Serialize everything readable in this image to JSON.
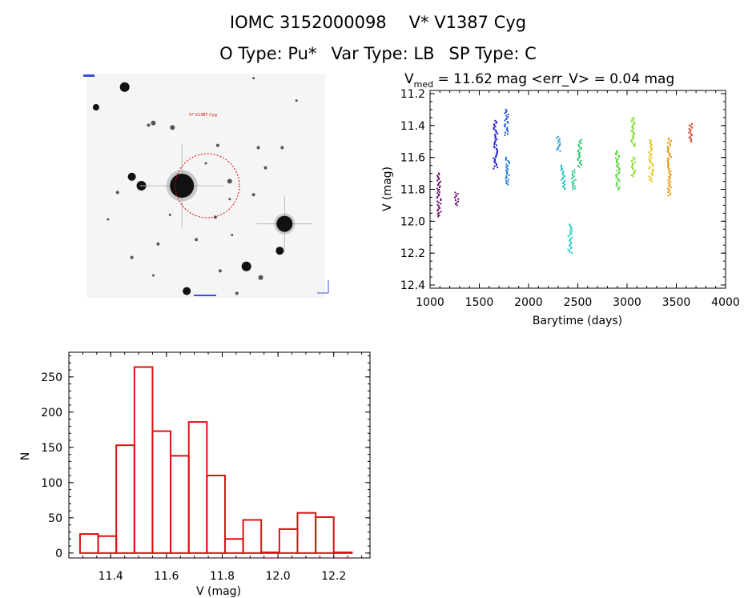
{
  "header": {
    "id": "IOMC 3152000098",
    "star_name": "V* V1387 Cyg",
    "o_type": "O Type: Pu*",
    "var_type": "Var Type: LB",
    "sp_type": "SP Type: C"
  },
  "image_panel": {
    "labels": [
      "V* V1387 Cyg"
    ],
    "stars": [
      [
        0.16,
        0.06,
        6
      ],
      [
        0.04,
        0.15,
        4
      ],
      [
        0.36,
        0.24,
        3
      ],
      [
        0.26,
        0.23,
        2
      ],
      [
        0.28,
        0.22,
        3
      ],
      [
        0.19,
        0.46,
        5
      ],
      [
        0.23,
        0.5,
        6
      ],
      [
        0.13,
        0.53,
        2
      ],
      [
        0.4,
        0.5,
        15
      ],
      [
        0.75,
        0.42,
        2
      ],
      [
        0.55,
        0.32,
        2
      ],
      [
        0.72,
        0.33,
        2
      ],
      [
        0.82,
        0.33,
        2
      ],
      [
        0.6,
        0.48,
        3
      ],
      [
        0.7,
        0.54,
        2
      ],
      [
        0.83,
        0.67,
        10
      ],
      [
        0.81,
        0.79,
        5
      ],
      [
        0.67,
        0.86,
        6
      ],
      [
        0.3,
        0.76,
        2
      ],
      [
        0.46,
        0.74,
        2
      ],
      [
        0.19,
        0.82,
        2
      ],
      [
        0.73,
        0.91,
        3
      ],
      [
        0.42,
        0.97,
        5
      ],
      [
        0.56,
        0.88,
        2
      ],
      [
        0.54,
        0.64,
        2
      ],
      [
        0.35,
        0.63,
        1.5
      ],
      [
        0.61,
        0.72,
        1.5
      ],
      [
        0.09,
        0.65,
        1.5
      ],
      [
        0.63,
        0.98,
        2
      ],
      [
        0.88,
        0.12,
        1.5
      ],
      [
        0.7,
        0.02,
        1.5
      ],
      [
        0.6,
        0.56,
        1.5
      ],
      [
        0.28,
        0.9,
        1.5
      ],
      [
        0.5,
        0.4,
        1.5
      ]
    ]
  },
  "chart_data": [
    {
      "type": "scatter",
      "title": "V_med = 11.62 mag <err_V> = 0.04 mag",
      "title_parts": {
        "v": "V",
        "sub": "med",
        "rest": " = 11.62 mag <err_V> = 0.04 mag"
      },
      "xlabel": "Barytime (days)",
      "ylabel": "V (mag)",
      "xlim": [
        1000,
        4000
      ],
      "ylim": [
        12.42,
        11.18
      ],
      "xticks": [
        1000,
        1500,
        2000,
        2500,
        3000,
        3500,
        4000
      ],
      "yticks": [
        11.2,
        11.4,
        11.6,
        11.8,
        12.0,
        12.2,
        12.4
      ],
      "clusters": [
        {
          "x": 1090,
          "ymin": 11.7,
          "ymax": 11.97,
          "color": "#6a0f6a"
        },
        {
          "x": 1270,
          "ymin": 11.82,
          "ymax": 11.9,
          "color": "#6a0f6a"
        },
        {
          "x": 1665,
          "ymin": 11.37,
          "ymax": 11.67,
          "color": "#1f1fe0"
        },
        {
          "x": 1775,
          "ymin": 11.3,
          "ymax": 11.46,
          "color": "#1f55d8"
        },
        {
          "x": 1790,
          "ymin": 11.6,
          "ymax": 11.77,
          "color": "#1f7bd8"
        },
        {
          "x": 2305,
          "ymin": 11.47,
          "ymax": 11.56,
          "color": "#2a9ed6"
        },
        {
          "x": 2350,
          "ymin": 11.65,
          "ymax": 11.8,
          "color": "#21c4c4"
        },
        {
          "x": 2420,
          "ymin": 12.02,
          "ymax": 12.2,
          "color": "#21d1c1"
        },
        {
          "x": 2460,
          "ymin": 11.68,
          "ymax": 11.8,
          "color": "#22c998"
        },
        {
          "x": 2520,
          "ymin": 11.49,
          "ymax": 11.66,
          "color": "#28c868"
        },
        {
          "x": 2905,
          "ymin": 11.56,
          "ymax": 11.8,
          "color": "#4ed433"
        },
        {
          "x": 3060,
          "ymin": 11.35,
          "ymax": 11.53,
          "color": "#7ddb2a"
        },
        {
          "x": 3065,
          "ymin": 11.6,
          "ymax": 11.72,
          "color": "#8fdb2a"
        },
        {
          "x": 3245,
          "ymin": 11.49,
          "ymax": 11.75,
          "color": "#e0c81a"
        },
        {
          "x": 3430,
          "ymin": 11.48,
          "ymax": 11.84,
          "color": "#e69a14"
        },
        {
          "x": 3650,
          "ymin": 11.39,
          "ymax": 11.5,
          "color": "#d64020"
        }
      ]
    },
    {
      "type": "bar",
      "xlabel": "V (mag)",
      "ylabel": "N",
      "xlim": [
        11.25,
        12.33
      ],
      "ylim": [
        -7,
        285
      ],
      "xticks": [
        11.4,
        11.6,
        11.8,
        12.0,
        12.2
      ],
      "yticks": [
        0,
        50,
        100,
        150,
        200,
        250
      ],
      "bin_width": 0.065,
      "bins": [
        {
          "left": 11.29,
          "value": 27
        },
        {
          "left": 11.355,
          "value": 24
        },
        {
          "left": 11.42,
          "value": 153
        },
        {
          "left": 11.485,
          "value": 264
        },
        {
          "left": 11.55,
          "value": 173
        },
        {
          "left": 11.615,
          "value": 138
        },
        {
          "left": 11.68,
          "value": 186
        },
        {
          "left": 11.745,
          "value": 110
        },
        {
          "left": 11.81,
          "value": 20
        },
        {
          "left": 11.875,
          "value": 47
        },
        {
          "left": 11.94,
          "value": 1
        },
        {
          "left": 12.005,
          "value": 34
        },
        {
          "left": 12.07,
          "value": 57
        },
        {
          "left": 12.135,
          "value": 51
        },
        {
          "left": 12.2,
          "value": 1
        }
      ],
      "bar_color": "#dd1111"
    }
  ]
}
